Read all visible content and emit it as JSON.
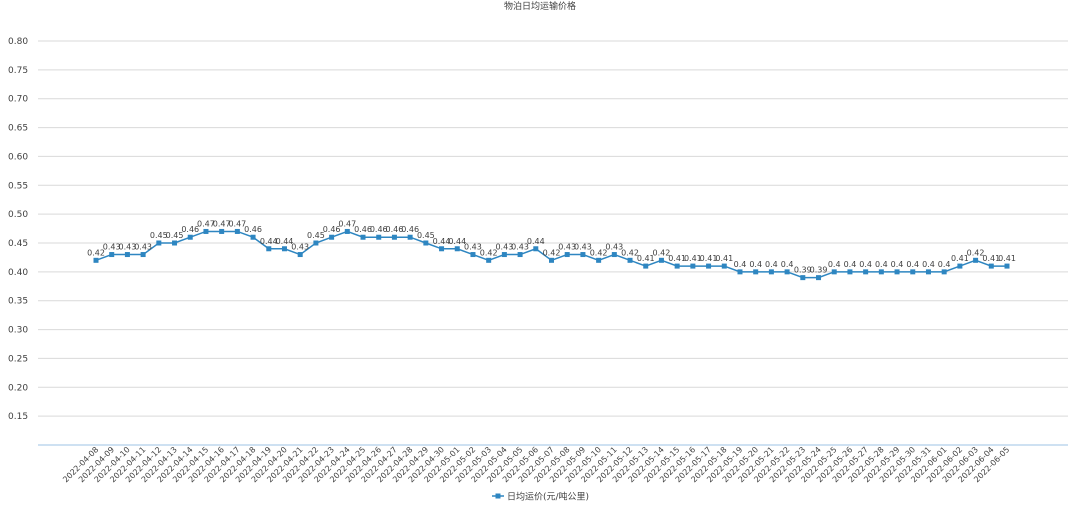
{
  "chart_data": {
    "type": "line",
    "title": "物泊日均运输价格",
    "xlabel": "",
    "ylabel": "",
    "ylim": [
      0.1,
      0.8
    ],
    "yticks": [
      0.15,
      0.2,
      0.25,
      0.3,
      0.35,
      0.4,
      0.45,
      0.5,
      0.55,
      0.6,
      0.65,
      0.7,
      0.75,
      0.8
    ],
    "ytick_labels": [
      "0.15",
      "0.20",
      "0.25",
      "0.30",
      "0.35",
      "0.40",
      "0.45",
      "0.50",
      "0.55",
      "0.60",
      "0.65",
      "0.70",
      "0.75",
      "0.80"
    ],
    "grid": true,
    "legend_position": "bottom",
    "categories": [
      "2022-04-08",
      "2022-04-09",
      "2022-04-10",
      "2022-04-11",
      "2022-04-12",
      "2022-04-13",
      "2022-04-14",
      "2022-04-15",
      "2022-04-16",
      "2022-04-17",
      "2022-04-18",
      "2022-04-19",
      "2022-04-20",
      "2022-04-21",
      "2022-04-22",
      "2022-04-23",
      "2022-04-24",
      "2022-04-25",
      "2022-04-26",
      "2022-04-27",
      "2022-04-28",
      "2022-04-29",
      "2022-04-30",
      "2022-05-01",
      "2022-05-02",
      "2022-05-03",
      "2022-05-04",
      "2022-05-05",
      "2022-05-06",
      "2022-05-07",
      "2022-05-08",
      "2022-05-09",
      "2022-05-10",
      "2022-05-11",
      "2022-05-12",
      "2022-05-13",
      "2022-05-14",
      "2022-05-15",
      "2022-05-16",
      "2022-05-17",
      "2022-05-18",
      "2022-05-19",
      "2022-05-20",
      "2022-05-21",
      "2022-05-22",
      "2022-05-23",
      "2022-05-24",
      "2022-05-25",
      "2022-05-26",
      "2022-05-27",
      "2022-05-28",
      "2022-05-29",
      "2022-05-30",
      "2022-05-31",
      "2022-06-01",
      "2022-06-02",
      "2022-06-03",
      "2022-06-04",
      "2022-06-05"
    ],
    "series": [
      {
        "name": "日均运价(元/吨公里)",
        "color": "#2e86c1",
        "values": [
          0.42,
          0.43,
          0.43,
          0.43,
          0.45,
          0.45,
          0.46,
          0.47,
          0.47,
          0.47,
          0.46,
          0.44,
          0.44,
          0.43,
          0.45,
          0.46,
          0.47,
          0.46,
          0.46,
          0.46,
          0.46,
          0.45,
          0.44,
          0.44,
          0.43,
          0.42,
          0.43,
          0.43,
          0.44,
          0.42,
          0.43,
          0.43,
          0.42,
          0.43,
          0.42,
          0.41,
          0.42,
          0.41,
          0.41,
          0.41,
          0.41,
          0.4,
          0.4,
          0.4,
          0.4,
          0.39,
          0.39,
          0.4,
          0.4,
          0.4,
          0.4,
          0.4,
          0.4,
          0.4,
          0.4,
          0.41,
          0.42,
          0.41,
          0.41
        ],
        "labels": [
          "0.42",
          "0.43",
          "0.43",
          "0.43",
          "0.45",
          "0.45",
          "0.46",
          "0.47",
          "0.47",
          "0.47",
          "0.46",
          "0.44",
          "0.44",
          "0.43",
          "0.45",
          "0.46",
          "0.47",
          "0.46",
          "0.46",
          "0.46",
          "0.46",
          "0.45",
          "0.44",
          "0.44",
          "0.43",
          "0.42",
          "0.43",
          "0.43",
          "0.44",
          "0.42",
          "0.43",
          "0.43",
          "0.42",
          "0.43",
          "0.42",
          "0.41",
          "0.42",
          "0.41",
          "0.41",
          "0.41",
          "0.41",
          "0.4",
          "0.4",
          "0.4",
          "0.4",
          "0.39",
          "0.39",
          "0.4",
          "0.4",
          "0.4",
          "0.4",
          "0.4",
          "0.4",
          "0.4",
          "0.4",
          "0.41",
          "0.42",
          "0.41",
          "0.41"
        ]
      }
    ],
    "colors": {
      "grid": "#d9d9d9",
      "axis": "#9dc3e6",
      "text": "#404040"
    }
  }
}
